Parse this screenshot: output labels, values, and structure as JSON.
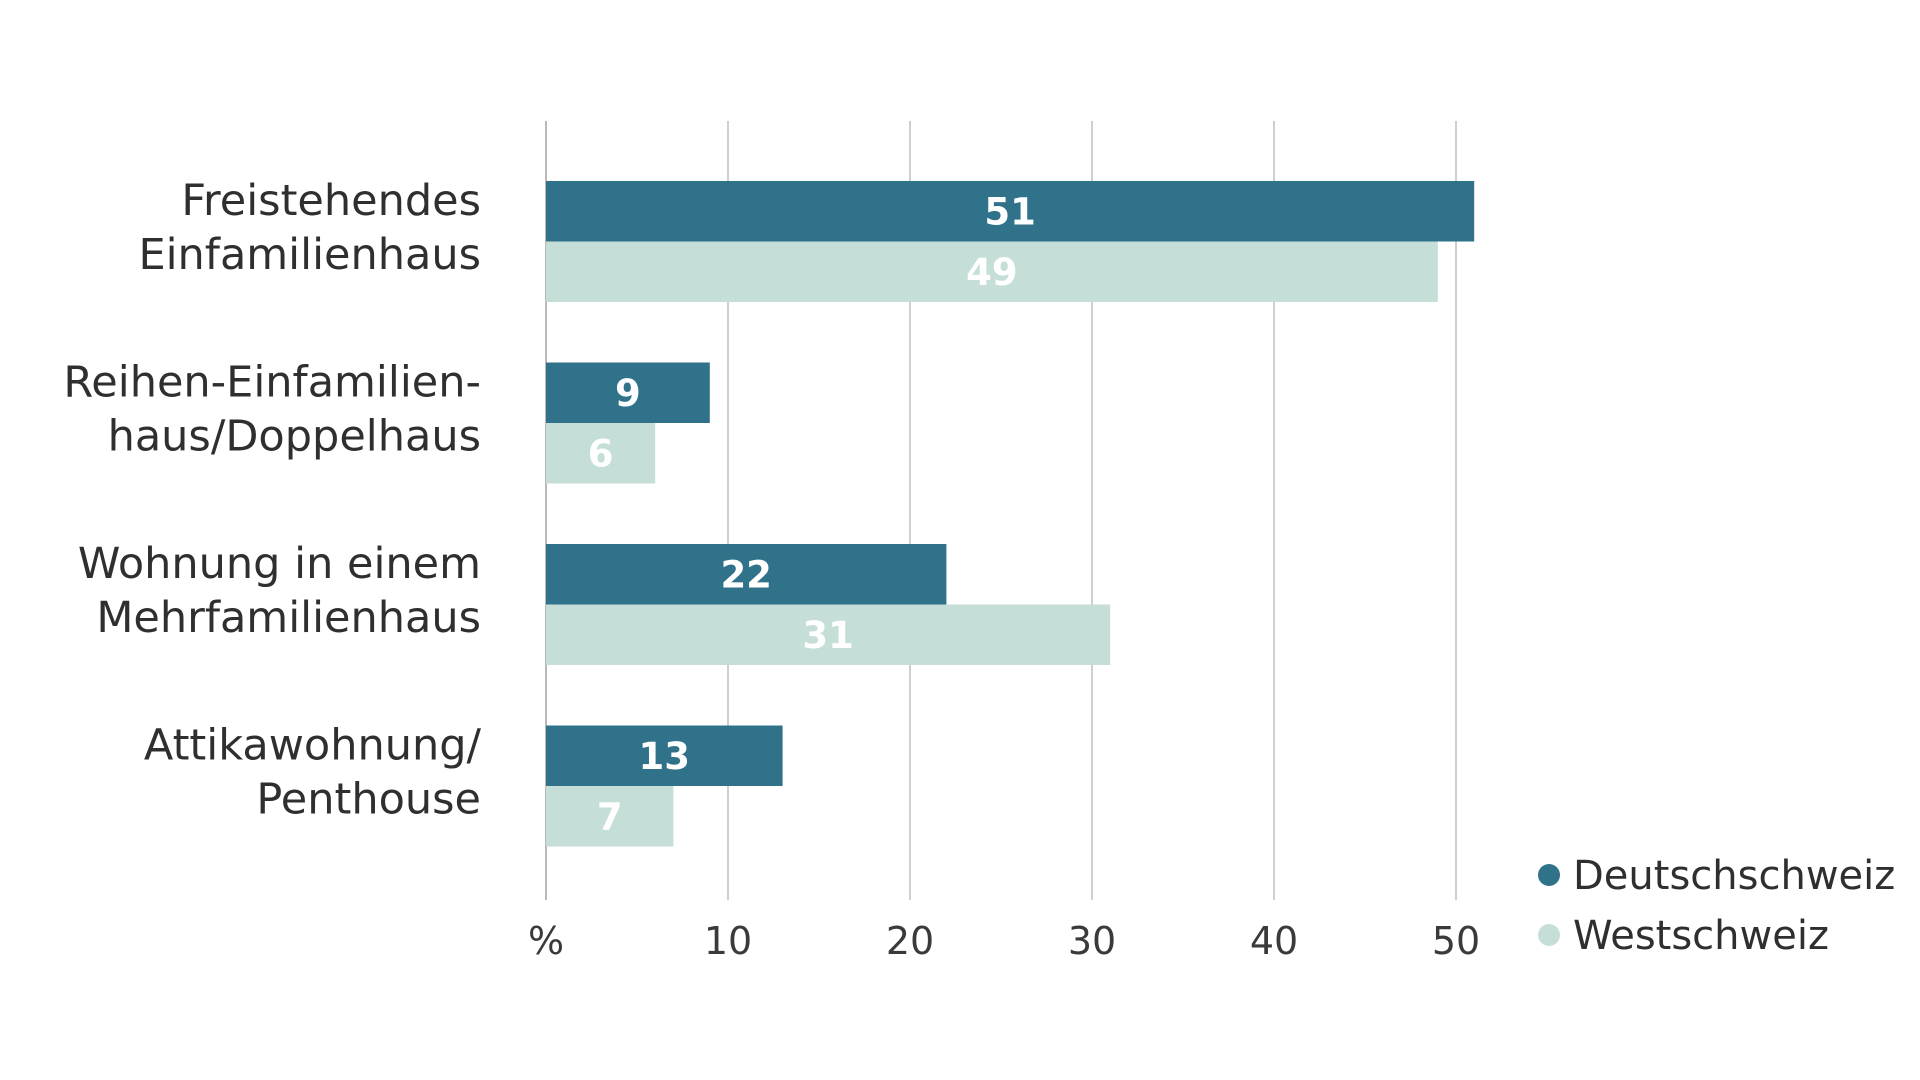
{
  "chart_data": {
    "type": "bar",
    "orientation": "horizontal",
    "categories": [
      [
        "Freistehendes",
        "Einfamilienhaus"
      ],
      [
        "Reihen-Einfamilien-",
        "haus/Doppelhaus"
      ],
      [
        "Wohnung in einem",
        "Mehrfamilienhaus"
      ],
      [
        "Attikawohnung/",
        "Penthouse"
      ]
    ],
    "series": [
      {
        "name": "Deutschschweiz",
        "values": [
          51,
          9,
          22,
          13
        ],
        "color": "#2f728a"
      },
      {
        "name": "Westschweiz",
        "values": [
          49,
          6,
          31,
          7
        ],
        "color": "#c6ded8"
      }
    ],
    "x_ticks": [
      "%",
      "10",
      "20",
      "30",
      "40",
      "50"
    ],
    "x_tick_values": [
      0,
      10,
      20,
      30,
      40,
      50
    ],
    "xlim": [
      0,
      52
    ],
    "grid": true,
    "data_labels": true,
    "legend_position": "bottom-right"
  }
}
